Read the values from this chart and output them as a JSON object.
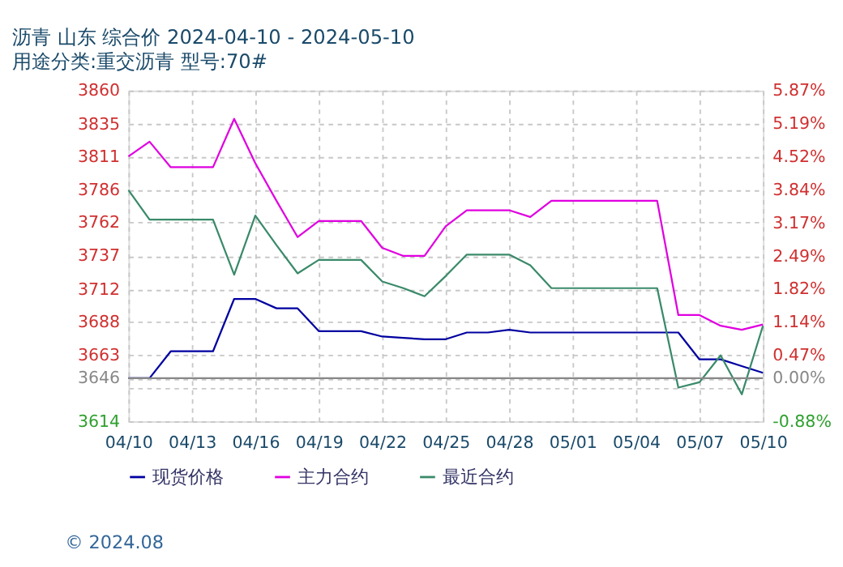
{
  "chart_data": {
    "type": "line",
    "title": "沥青 山东 综合价 2024-04-10 - 2024-05-10",
    "subtitle": "用途分类:重交沥青 型号:70#",
    "x": [
      "2024-04-10",
      "2024-04-11",
      "2024-04-12",
      "2024-04-13",
      "2024-04-14",
      "2024-04-15",
      "2024-04-16",
      "2024-04-17",
      "2024-04-18",
      "2024-04-19",
      "2024-04-20",
      "2024-04-21",
      "2024-04-22",
      "2024-04-23",
      "2024-04-24",
      "2024-04-25",
      "2024-04-26",
      "2024-04-27",
      "2024-04-28",
      "2024-04-29",
      "2024-04-30",
      "2024-05-01",
      "2024-05-02",
      "2024-05-03",
      "2024-05-04",
      "2024-05-05",
      "2024-05-06",
      "2024-05-07",
      "2024-05-08",
      "2024-05-09",
      "2024-05-10"
    ],
    "series": [
      {
        "name": "现货价格",
        "color": "#0000a0",
        "values": [
          3646,
          3646,
          3666,
          3666,
          3666,
          3705,
          3705,
          3698,
          3698,
          3681,
          3681,
          3681,
          3677,
          3676,
          3675,
          3675,
          3680,
          3680,
          3682,
          3680,
          3680,
          3680,
          3680,
          3680,
          3680,
          3680,
          3680,
          3660,
          3660,
          3655,
          3650
        ]
      },
      {
        "name": "主力合约",
        "color": "#e000e0",
        "values": [
          3811,
          3822,
          3803,
          3803,
          3803,
          3839,
          3806,
          3778,
          3751,
          3763,
          3763,
          3763,
          3743,
          3737,
          3737,
          3759,
          3771,
          3771,
          3771,
          3766,
          3778,
          3778,
          3778,
          3778,
          3778,
          3778,
          3693,
          3693,
          3685,
          3682,
          3686
        ]
      },
      {
        "name": "最近合约",
        "color": "#3a8a6a",
        "values": [
          3786,
          3764,
          3764,
          3764,
          3764,
          3723,
          3767,
          3745,
          3724,
          3734,
          3734,
          3734,
          3718,
          3713,
          3707,
          3722,
          3738,
          3738,
          3738,
          3730,
          3713,
          3713,
          3713,
          3713,
          3713,
          3713,
          3639,
          3643,
          3663,
          3634,
          3685
        ]
      }
    ],
    "xlim": [
      "2024-04-10",
      "2024-05-10"
    ],
    "xticks": [
      {
        "value": "2024-04-10",
        "label": "04/10"
      },
      {
        "value": "2024-04-13",
        "label": "04/13"
      },
      {
        "value": "2024-04-16",
        "label": "04/16"
      },
      {
        "value": "2024-04-19",
        "label": "04/19"
      },
      {
        "value": "2024-04-22",
        "label": "04/22"
      },
      {
        "value": "2024-04-25",
        "label": "04/25"
      },
      {
        "value": "2024-04-28",
        "label": "04/28"
      },
      {
        "value": "2024-05-01",
        "label": "05/01"
      },
      {
        "value": "2024-05-04",
        "label": "05/04"
      },
      {
        "value": "2024-05-07",
        "label": "05/07"
      },
      {
        "value": "2024-05-10",
        "label": "05/10"
      }
    ],
    "ylim": [
      3614,
      3860
    ],
    "yticks": [
      3614,
      {
        "value": 3638.6,
        "label": null
      },
      3646,
      3663,
      3688,
      3712,
      3737,
      3762,
      3786,
      3811,
      3835,
      3860
    ],
    "y2lim": [
      -0.88,
      5.87
    ],
    "y2ticks": [
      {
        "value": -0.88,
        "label": "-0.88%"
      },
      {
        "value": 0,
        "label": "0.00%"
      },
      {
        "value": 0.47,
        "label": "0.47%"
      },
      {
        "value": 1.14,
        "label": "1.14%"
      },
      {
        "value": 1.82,
        "label": "1.82%"
      },
      {
        "value": 2.49,
        "label": "2.49%"
      },
      {
        "value": 3.17,
        "label": "3.17%"
      },
      {
        "value": 3.84,
        "label": "3.84%"
      },
      {
        "value": 4.52,
        "label": "4.52%"
      },
      {
        "value": 5.19,
        "label": "5.19%"
      },
      {
        "value": 5.87,
        "label": "5.87%"
      }
    ],
    "ref_lines": [
      {
        "axis": "y",
        "value": 3646,
        "color": "#888888"
      }
    ],
    "grid": true,
    "legend": "bottom",
    "line_style": "solid",
    "marker": "none",
    "annotations": [
      "© 2024.08"
    ]
  }
}
